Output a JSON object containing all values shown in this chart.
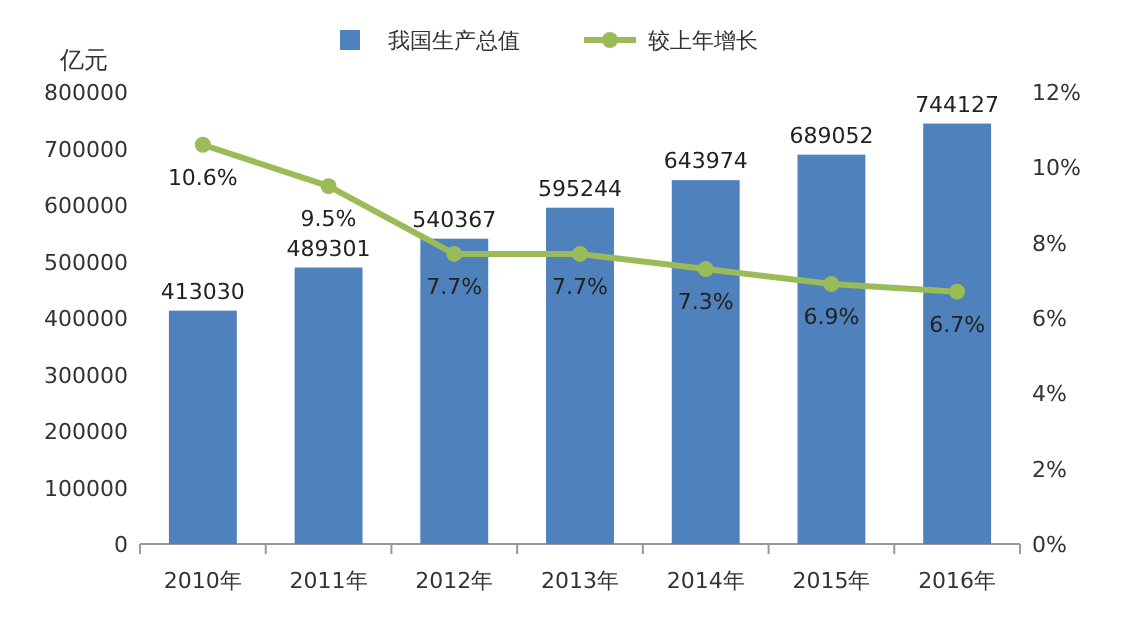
{
  "chart_data": {
    "type": "bar",
    "ylabel": "亿元",
    "categories": [
      "2010年",
      "2011年",
      "2012年",
      "2013年",
      "2014年",
      "2015年",
      "2016年"
    ],
    "series": [
      {
        "name": "我国生产总值",
        "color": "#4f81bd",
        "values": [
          413030,
          489301,
          540367,
          595244,
          643974,
          689052,
          744127
        ]
      },
      {
        "name": "较上年增长",
        "type": "line",
        "axis": "y2",
        "color": "#9bbb59",
        "marker": "circle",
        "values": [
          10.6,
          9.5,
          7.7,
          7.7,
          7.3,
          6.9,
          6.7
        ],
        "value_labels": [
          "10.6%",
          "9.5%",
          "7.7%",
          "7.7%",
          "7.3%",
          "6.9%",
          "6.7%"
        ]
      }
    ],
    "ylim": [
      0,
      800000
    ],
    "yticks": [
      0,
      100000,
      200000,
      300000,
      400000,
      500000,
      600000,
      700000,
      800000
    ],
    "y2lim": [
      0,
      12
    ],
    "y2ticks": [
      {
        "value": 0,
        "label": "0%"
      },
      {
        "value": 2,
        "label": "2%"
      },
      {
        "value": 4,
        "label": "4%"
      },
      {
        "value": 6,
        "label": "6%"
      },
      {
        "value": 8,
        "label": "8%"
      },
      {
        "value": 10,
        "label": "10%"
      },
      {
        "value": 12,
        "label": "12%"
      }
    ],
    "data_labels": true,
    "legend": "top",
    "grid": false
  }
}
